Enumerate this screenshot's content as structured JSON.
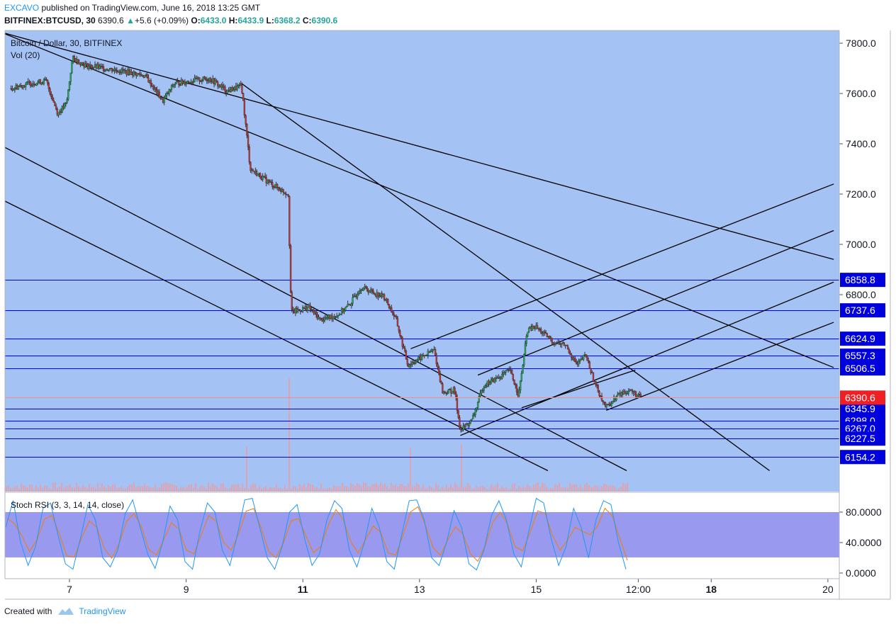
{
  "header": {
    "author": "EXCAVO",
    "published_text": "published on TradingView.com, June 16, 2018 13:25 GMT",
    "symbol": "BITFINEX:BTCUSD, 30",
    "last": "6390.6",
    "change_arrow": "▲",
    "change": "+5.6 (+0.09%)",
    "o_label": "O:",
    "o_value": "6433.0",
    "h_label": "H:",
    "h_value": "6433.9",
    "l_label": "L:",
    "l_value": "6368.2",
    "c_label": "C:",
    "c_value": "6390.6"
  },
  "legend": {
    "title": "Bitcoin / Dollar, 30, BITFINEX",
    "volume": "Vol (20)",
    "stoch": "Stoch RSI (3, 3, 14, 14, close)"
  },
  "footer": {
    "created_with": "Created with",
    "brand": "TradingView"
  },
  "colors": {
    "chart_bg": "#a4c2f4",
    "stoch_band": "#9999f0",
    "level_line": "#0000ff",
    "level_label_bg": "#0000dd",
    "price_label_bg": "#ef1f24",
    "trend_line": "#000000",
    "candle_up": "#26a65b",
    "candle_down": "#b53a3a",
    "volume_bar": "#ef9a9a",
    "k_line": "#2196f3",
    "d_line": "#f57c00"
  },
  "chart_data": [
    {
      "type": "candlestick",
      "title": "Bitcoin / Dollar, 30, BITFINEX",
      "x_ticks": [
        "7",
        "9",
        "11",
        "13",
        "15",
        "12:00",
        "18",
        "20"
      ],
      "y_ticks": [
        "7800.0",
        "7600.0",
        "7400.0",
        "7200.0",
        "7000.0",
        "6800.0"
      ],
      "ylim": [
        6100,
        7850
      ],
      "last_price": {
        "value": 6390.6,
        "label": "6390.6"
      },
      "price_path": [
        [
          6.0,
          7620
        ],
        [
          6.3,
          7640
        ],
        [
          6.6,
          7650
        ],
        [
          6.8,
          7520
        ],
        [
          6.95,
          7560
        ],
        [
          7.05,
          7740
        ],
        [
          7.3,
          7710
        ],
        [
          7.6,
          7700
        ],
        [
          7.9,
          7690
        ],
        [
          8.3,
          7670
        ],
        [
          8.6,
          7570
        ],
        [
          8.8,
          7640
        ],
        [
          9.1,
          7650
        ],
        [
          9.4,
          7660
        ],
        [
          9.7,
          7610
        ],
        [
          9.95,
          7630
        ],
        [
          10.1,
          7300
        ],
        [
          10.4,
          7250
        ],
        [
          10.6,
          7220
        ],
        [
          10.75,
          7200
        ],
        [
          10.8,
          6730
        ],
        [
          11.1,
          6750
        ],
        [
          11.3,
          6700
        ],
        [
          11.6,
          6720
        ],
        [
          11.8,
          6760
        ],
        [
          12.0,
          6830
        ],
        [
          12.4,
          6790
        ],
        [
          12.6,
          6700
        ],
        [
          12.8,
          6520
        ],
        [
          13.1,
          6560
        ],
        [
          13.25,
          6580
        ],
        [
          13.4,
          6410
        ],
        [
          13.6,
          6420
        ],
        [
          13.7,
          6260
        ],
        [
          13.9,
          6300
        ],
        [
          14.1,
          6440
        ],
        [
          14.35,
          6470
        ],
        [
          14.55,
          6500
        ],
        [
          14.7,
          6400
        ],
        [
          14.85,
          6660
        ],
        [
          15.0,
          6670
        ],
        [
          15.3,
          6610
        ],
        [
          15.5,
          6600
        ],
        [
          15.7,
          6520
        ],
        [
          15.85,
          6560
        ],
        [
          16.0,
          6450
        ],
        [
          16.2,
          6350
        ],
        [
          16.4,
          6400
        ],
        [
          16.6,
          6420
        ],
        [
          16.8,
          6390
        ]
      ],
      "levels": [
        {
          "value": 6858.8,
          "label": "6858.8"
        },
        {
          "value": 6737.6,
          "label": "6737.6"
        },
        {
          "value": 6624.9,
          "label": "6624.9"
        },
        {
          "value": 6557.3,
          "label": "6557.3"
        },
        {
          "value": 6506.5,
          "label": "6506.5"
        },
        {
          "value": 6345.9,
          "label": "6345.9"
        },
        {
          "value": 6298.0,
          "label": "6298.0"
        },
        {
          "value": 6267.0,
          "label": "6267.0"
        },
        {
          "value": 6227.5,
          "label": "6227.5"
        },
        {
          "value": 6154.2,
          "label": "6154.2"
        }
      ],
      "trendlines": [
        {
          "from": [
            5.65,
            7855
          ],
          "to": [
            20.1,
            6940
          ]
        },
        {
          "from": [
            5.65,
            7860
          ],
          "to": [
            20.1,
            6510
          ]
        },
        {
          "from": [
            5.65,
            7415
          ],
          "to": [
            16.55,
            6100
          ]
        },
        {
          "from": [
            5.65,
            7200
          ],
          "to": [
            15.2,
            6100
          ]
        },
        {
          "from": [
            9.95,
            7640
          ],
          "to": [
            19.0,
            6100
          ]
        },
        {
          "from": [
            12.85,
            6585
          ],
          "to": [
            20.1,
            7240
          ]
        },
        {
          "from": [
            14.0,
            6480
          ],
          "to": [
            20.1,
            7055
          ]
        },
        {
          "from": [
            13.7,
            6240
          ],
          "to": [
            20.1,
            6850
          ]
        },
        {
          "from": [
            16.2,
            6340
          ],
          "to": [
            20.1,
            6690
          ]
        },
        {
          "from": [
            14.75,
            6350
          ],
          "to": [
            16.7,
            6500
          ]
        }
      ]
    },
    {
      "type": "line",
      "title": "Stoch RSI (3, 3, 14, 14, close)",
      "y_ticks": [
        "80.0000",
        "40.0000",
        "0.0000"
      ],
      "ylim": [
        -5,
        105
      ],
      "band": [
        20,
        80
      ],
      "k_values": [
        60,
        95,
        40,
        10,
        35,
        85,
        92,
        50,
        12,
        5,
        45,
        90,
        70,
        20,
        8,
        30,
        78,
        96,
        60,
        25,
        6,
        40,
        88,
        70,
        15,
        5,
        55,
        92,
        80,
        30,
        10,
        50,
        96,
        98,
        60,
        20,
        5,
        35,
        80,
        90,
        45,
        10,
        25,
        70,
        95,
        85,
        30,
        8,
        40,
        85,
        60,
        15,
        5,
        50,
        95,
        96,
        70,
        20,
        10,
        40,
        82,
        60,
        12,
        4,
        30,
        75,
        95,
        70,
        25,
        8,
        55,
        98,
        92,
        45,
        10,
        35,
        85,
        60,
        20,
        70,
        95,
        90,
        40,
        5
      ]
    }
  ]
}
